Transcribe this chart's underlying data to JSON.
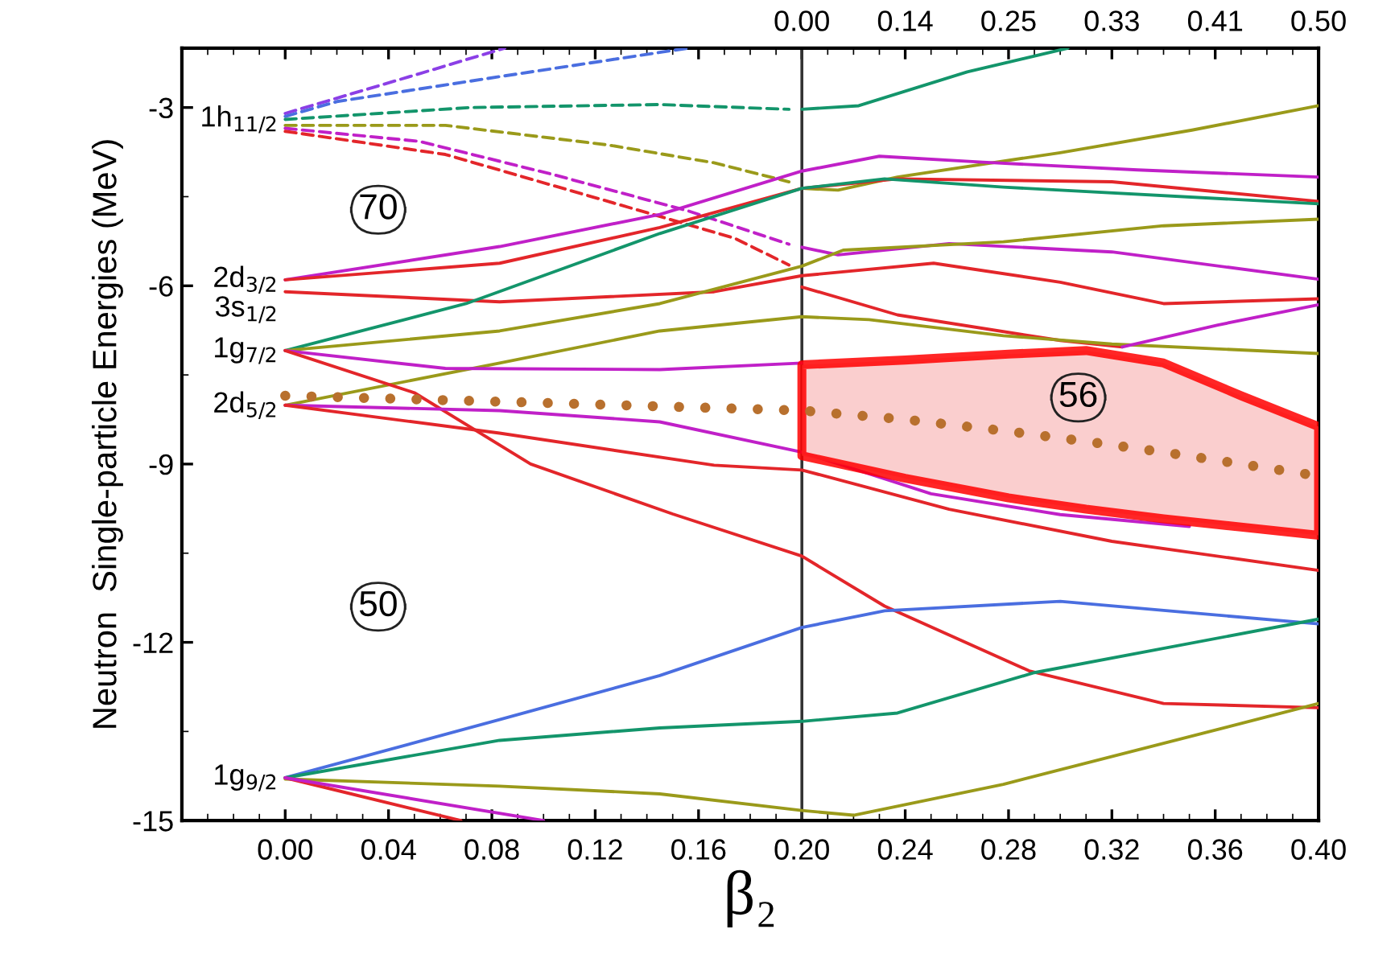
{
  "chart_data": {
    "type": "line",
    "xlabel": "β₂",
    "ylabel": "Neutron  Single-particle Energies (MeV)",
    "xlim": [
      -0.04,
      0.4
    ],
    "xticks": [
      {
        "value": 0.0,
        "label": "0.00"
      },
      {
        "value": 0.04,
        "label": "0.04"
      },
      {
        "value": 0.08,
        "label": "0.08"
      },
      {
        "value": 0.12,
        "label": "0.12"
      },
      {
        "value": 0.16,
        "label": "0.16"
      },
      {
        "value": 0.2,
        "label": "0.20"
      },
      {
        "value": 0.24,
        "label": "0.24"
      },
      {
        "value": 0.28,
        "label": "0.28"
      },
      {
        "value": 0.32,
        "label": "0.32"
      },
      {
        "value": 0.36,
        "label": "0.36"
      },
      {
        "value": 0.4,
        "label": "0.40"
      }
    ],
    "ylim": [
      -15,
      -2
    ],
    "yticks": [
      -3,
      -6,
      -9,
      -12,
      -15
    ],
    "ref_lines": [
      {
        "axis": "x",
        "value": 0.2,
        "color": "#333333"
      }
    ],
    "series": [
      {
        "color": "#8b3fe6",
        "line_style": "dashed",
        "x": [
          0,
          0.052,
          0.085
        ],
        "values": [
          -3.1,
          -2.43,
          -2.0
        ]
      },
      {
        "color": "#4a6ee0",
        "line_style": "dashed",
        "x": [
          0,
          0.02,
          0.083,
          0.156
        ],
        "values": [
          -3.15,
          -2.9,
          -2.48,
          -2.0
        ]
      },
      {
        "color": "#13956b",
        "line_style": "dashed",
        "x": [
          0,
          0.072,
          0.145,
          0.195
        ],
        "values": [
          -3.2,
          -3.0,
          -2.95,
          -3.03
        ]
      },
      {
        "color": "#13956b",
        "line_style": "solid",
        "x": [
          0.2,
          0.222,
          0.264,
          0.303
        ],
        "values": [
          -3.03,
          -2.97,
          -2.4,
          -2.0
        ]
      },
      {
        "color": "#9a9a1a",
        "line_style": "dashed",
        "x": [
          0,
          0.062,
          0.125,
          0.166,
          0.195
        ],
        "values": [
          -3.3,
          -3.3,
          -3.63,
          -3.93,
          -4.25
        ]
      },
      {
        "color": "#9a9a1a",
        "line_style": "solid",
        "x": [
          0.2,
          0.214,
          0.237,
          0.3,
          0.351,
          0.4
        ],
        "values": [
          -4.36,
          -4.39,
          -4.17,
          -3.76,
          -3.38,
          -2.97
        ]
      },
      {
        "color": "#c020c8",
        "line_style": "dashed",
        "x": [
          0,
          0.052,
          0.103,
          0.156,
          0.195
        ],
        "values": [
          -3.35,
          -3.57,
          -4.12,
          -4.74,
          -5.3
        ]
      },
      {
        "color": "#c020c8",
        "line_style": "solid",
        "x": [
          0.2,
          0.214,
          0.257,
          0.32,
          0.4
        ],
        "values": [
          -5.35,
          -5.48,
          -5.29,
          -5.43,
          -5.89
        ]
      },
      {
        "color": "#e3262a",
        "line_style": "dashed",
        "x": [
          0,
          0.062,
          0.125,
          0.174,
          0.195
        ],
        "values": [
          -3.4,
          -3.79,
          -4.58,
          -5.2,
          -5.65
        ]
      },
      {
        "color": "#e3262a",
        "line_style": "solid",
        "x": [
          0.2,
          0.237,
          0.3,
          0.324
        ],
        "values": [
          -6.02,
          -6.49,
          -6.92,
          -7.03
        ]
      },
      {
        "color": "#c020c8",
        "line_style": "solid",
        "x": [
          0,
          0.083,
          0.145,
          0.2,
          0.23,
          0.27,
          0.33,
          0.4
        ],
        "values": [
          -5.9,
          -5.34,
          -4.8,
          -4.07,
          -3.82,
          -3.92,
          -4.05,
          -4.17
        ]
      },
      {
        "color": "#e3262a",
        "line_style": "solid",
        "x": [
          0,
          0.083,
          0.145,
          0.2,
          0.237,
          0.32,
          0.4
        ],
        "values": [
          -5.9,
          -5.62,
          -5.02,
          -4.36,
          -4.2,
          -4.25,
          -4.58
        ]
      },
      {
        "color": "#e3262a",
        "line_style": "solid",
        "x": [
          0,
          0.083,
          0.166,
          0.2,
          0.251,
          0.3,
          0.34,
          0.4
        ],
        "values": [
          -6.1,
          -6.27,
          -6.1,
          -5.83,
          -5.62,
          -5.94,
          -6.3,
          -6.22
        ]
      },
      {
        "color": "#13956b",
        "line_style": "solid",
        "x": [
          0,
          0.07,
          0.145,
          0.2,
          0.232,
          0.278,
          0.4
        ],
        "values": [
          -7.09,
          -6.3,
          -5.12,
          -4.36,
          -4.2,
          -4.34,
          -4.62
        ]
      },
      {
        "color": "#9a9a1a",
        "line_style": "solid",
        "x": [
          0,
          0.083,
          0.145,
          0.2,
          0.216,
          0.278,
          0.34,
          0.4
        ],
        "values": [
          -7.09,
          -6.76,
          -6.3,
          -5.67,
          -5.4,
          -5.26,
          -4.99,
          -4.88
        ]
      },
      {
        "color": "#9a9a1a",
        "line_style": "solid",
        "x": [
          0,
          0.083,
          0.145,
          0.2,
          0.226,
          0.278,
          0.32,
          0.4
        ],
        "values": [
          -8.01,
          -7.3,
          -6.76,
          -6.52,
          -6.57,
          -6.84,
          -6.98,
          -7.14
        ]
      },
      {
        "color": "#c020c8",
        "line_style": "solid",
        "x": [
          0,
          0.062,
          0.145,
          0.2,
          0.26,
          0.324,
          0.361,
          0.4
        ],
        "values": [
          -7.09,
          -7.39,
          -7.41,
          -7.3,
          null,
          -7.03,
          -6.66,
          -6.32
        ]
      },
      {
        "color": "#e3262a",
        "line_style": "solid",
        "x": [
          0,
          0.05,
          0.095,
          0.15,
          0.2,
          0.232,
          0.288,
          0.34,
          0.4
        ],
        "values": [
          -7.09,
          -7.8,
          -9.0,
          -9.84,
          -10.55,
          -11.39,
          -12.48,
          -13.03,
          -13.1
        ]
      },
      {
        "color": "#c020c8",
        "line_style": "solid",
        "x": [
          0,
          0.083,
          0.145,
          0.2,
          0.25,
          0.3,
          0.35
        ],
        "values": [
          -8.01,
          -8.1,
          -8.29,
          -8.8,
          -9.5,
          -9.85,
          -10.05
        ]
      },
      {
        "color": "#e3262a",
        "line_style": "solid",
        "x": [
          0,
          0.083,
          0.166,
          0.2,
          0.257,
          0.32,
          0.4
        ],
        "values": [
          -8.01,
          -8.48,
          -9.02,
          -9.1,
          -9.76,
          -10.3,
          -10.79
        ]
      },
      {
        "color": "#4a6ee0",
        "line_style": "solid",
        "x": [
          0,
          0.083,
          0.145,
          0.2,
          0.232,
          0.3,
          0.4
        ],
        "values": [
          -14.28,
          -13.3,
          -12.56,
          -11.75,
          -11.47,
          -11.31,
          -11.69
        ]
      },
      {
        "color": "#13956b",
        "line_style": "solid",
        "x": [
          0,
          0.083,
          0.145,
          0.2,
          0.237,
          0.29,
          0.4
        ],
        "values": [
          -14.28,
          -13.65,
          -13.44,
          -13.33,
          -13.19,
          -12.51,
          -11.61
        ]
      },
      {
        "color": "#9a9a1a",
        "line_style": "solid",
        "x": [
          0,
          0.083,
          0.145,
          0.2,
          0.22,
          0.278,
          0.4
        ],
        "values": [
          -14.3,
          -14.42,
          -14.55,
          -14.83,
          -14.91,
          -14.39,
          -13.03
        ]
      },
      {
        "color": "#e3262a",
        "line_style": "solid",
        "x": [
          0,
          0.068
        ],
        "values": [
          -14.28,
          -15.0
        ]
      },
      {
        "color": "#c020c8",
        "line_style": "solid",
        "x": [
          0,
          0.1
        ],
        "values": [
          -14.28,
          -15.0
        ]
      },
      {
        "color": "#b8702e",
        "line_style": "dotted",
        "x": [
          0,
          0.1,
          0.2,
          0.24,
          0.28,
          0.31,
          0.34,
          0.37,
          0.4
        ],
        "values": [
          -7.85,
          -7.97,
          -8.1,
          -8.25,
          -8.45,
          -8.62,
          -8.8,
          -9.0,
          -9.2
        ],
        "lower": [
          null,
          null,
          -8.86,
          -9.24,
          -9.57,
          -9.76,
          -9.92,
          -10.06,
          -10.2
        ],
        "upper": [
          null,
          null,
          -7.33,
          -7.25,
          -7.15,
          -7.09,
          -7.3,
          -7.85,
          -8.37
        ]
      }
    ],
    "annotations": [
      {
        "text": "1h$_{11/2}$",
        "x": 0,
        "y": -3.2
      },
      {
        "text": "2d$_{3/2}$",
        "x": 0,
        "y": -5.9
      },
      {
        "text": "3s$_{1/2}$",
        "x": 0,
        "y": -6.1
      },
      {
        "text": "1g$_{7/2}$",
        "x": 0,
        "y": -7.09
      },
      {
        "text": "2d$_{5/2}$",
        "x": 0,
        "y": -8.01
      },
      {
        "text": "1g$_{9/2}$",
        "x": 0,
        "y": -14.28
      },
      {
        "text": "70",
        "x": 0.036,
        "y": -4.72
      },
      {
        "text": "50",
        "x": 0.036,
        "y": -11.4
      },
      {
        "text": "56",
        "x": 0.307,
        "y": -7.88
      },
      "0.00",
      "0.14",
      "0.25",
      "0.33",
      "0.41",
      "0.50"
    ]
  }
}
